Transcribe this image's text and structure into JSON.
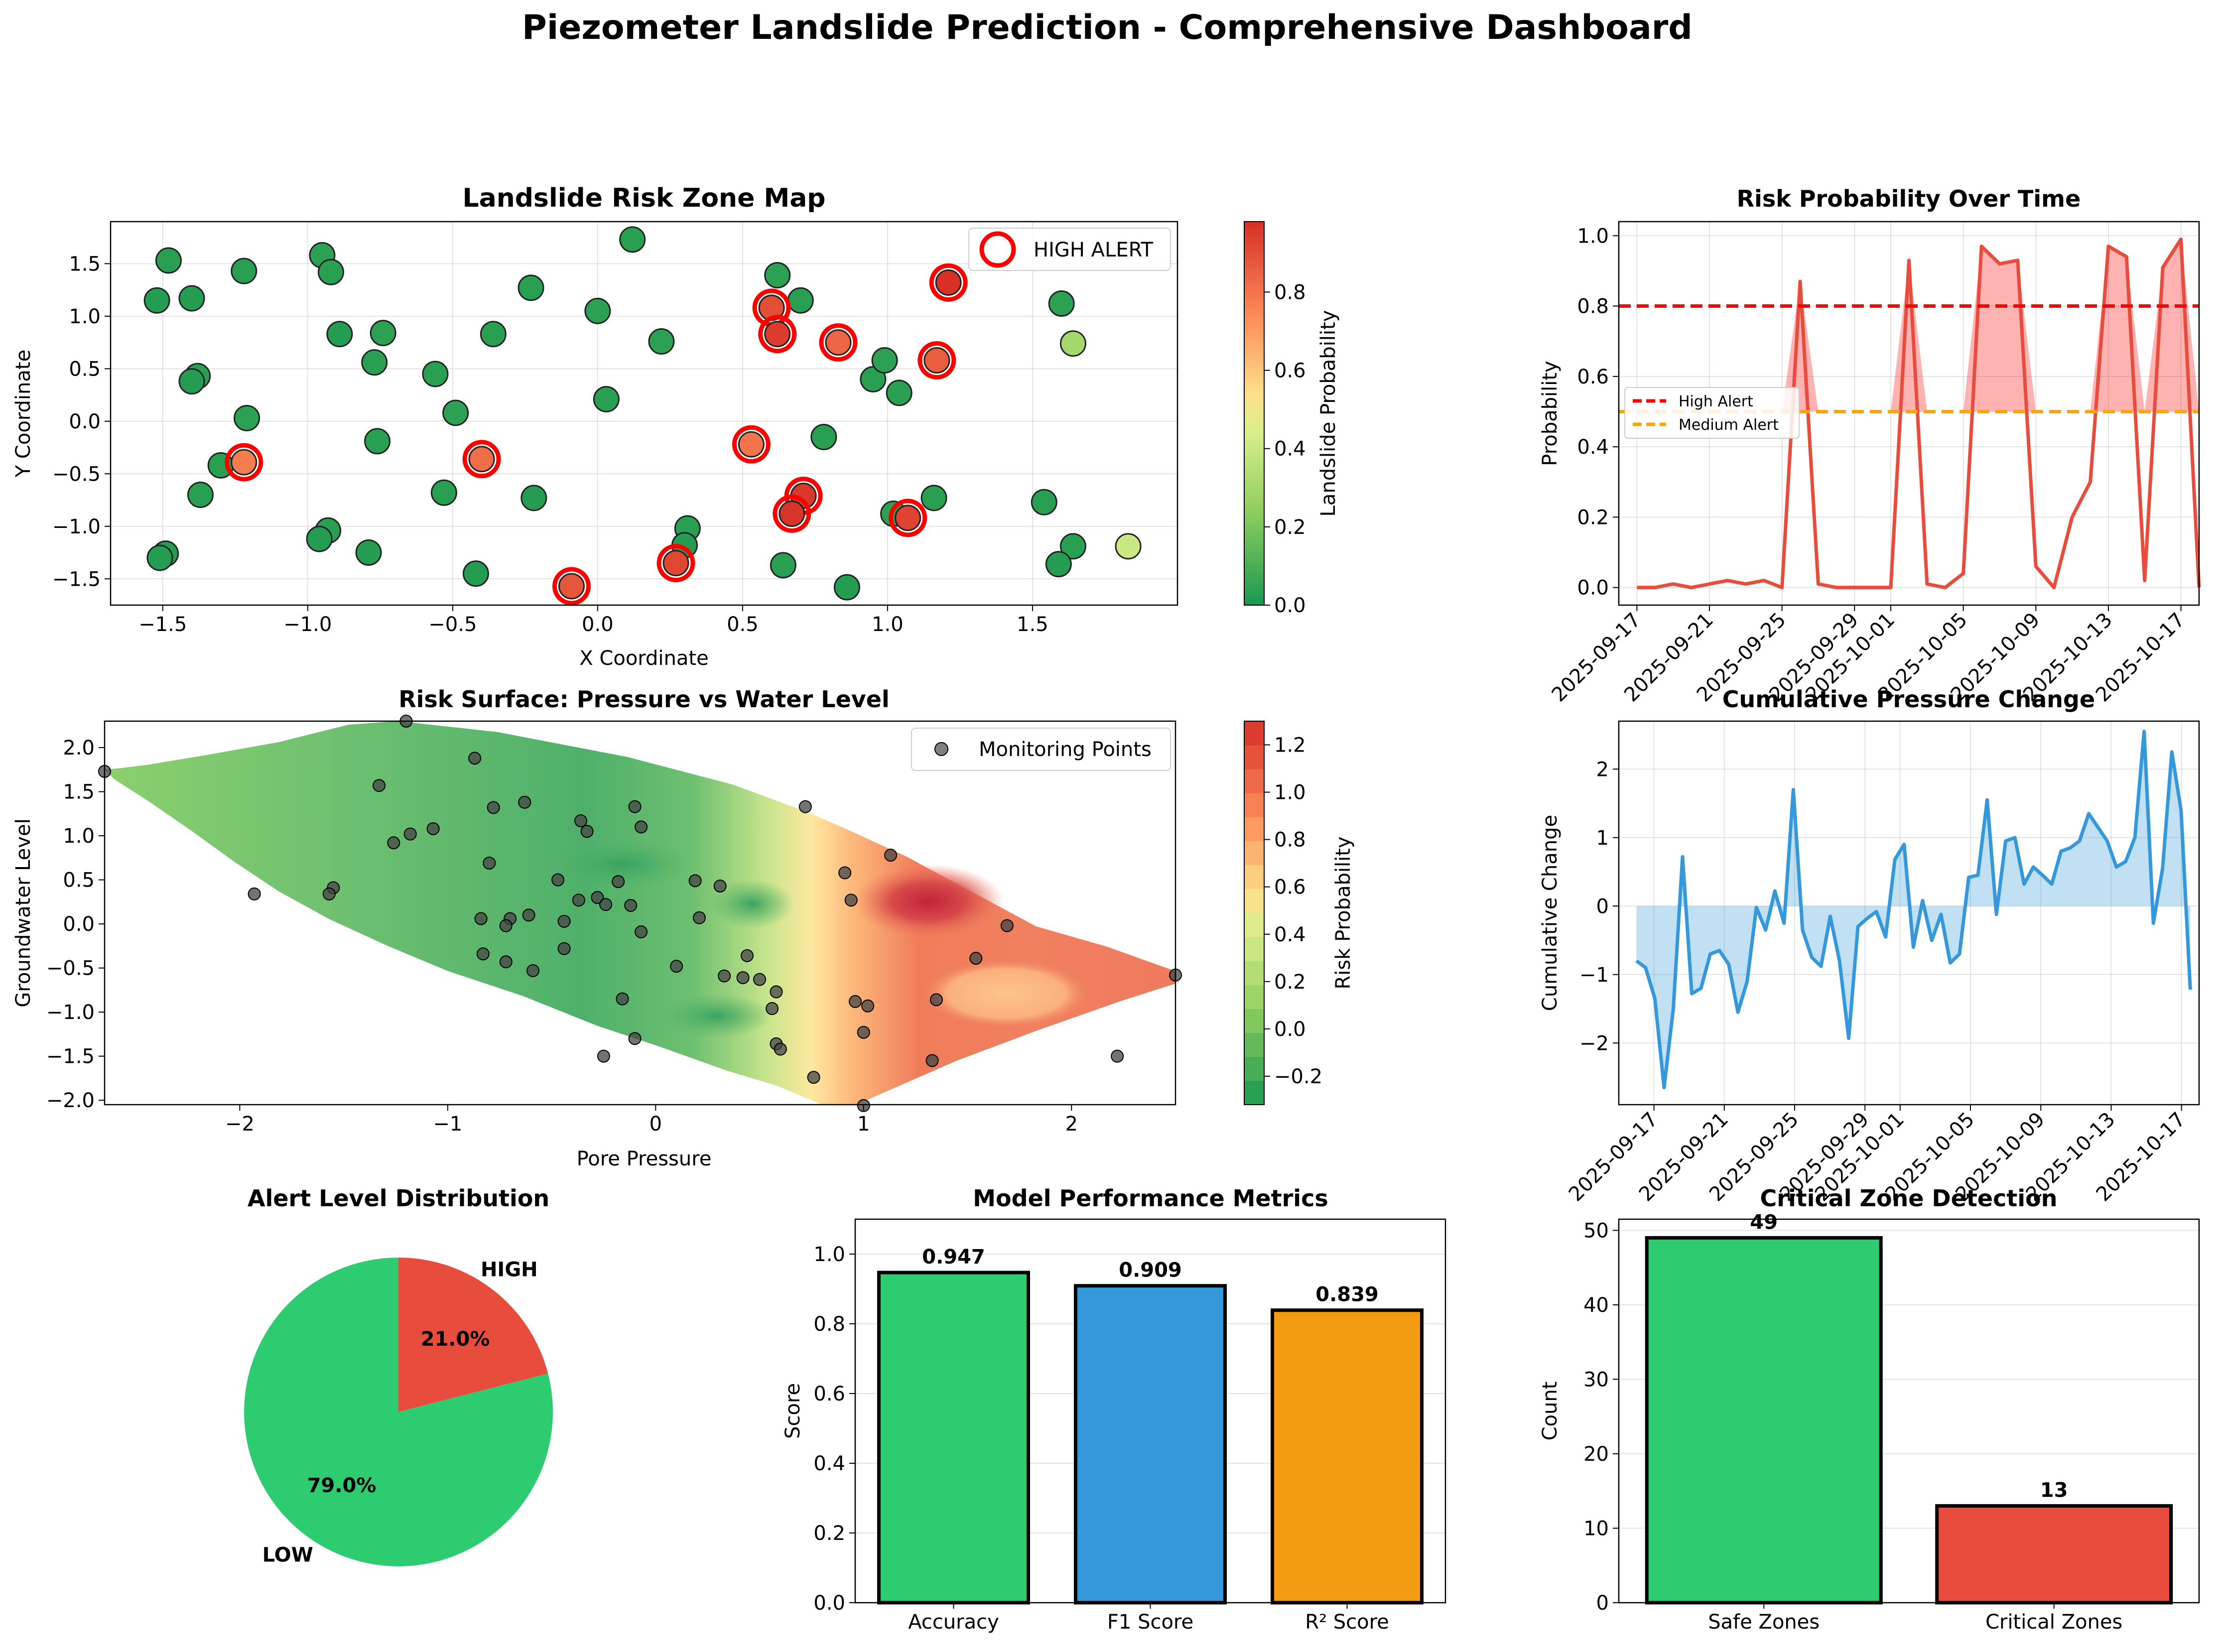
{
  "title": "Piezometer Landslide Prediction - Comprehensive Dashboard",
  "colors": {
    "red": "#e74c3c",
    "green": "#2ecc71",
    "blue": "#3498db",
    "orange": "#f39c12",
    "alert_red": "#ff0000",
    "medium_orange": "#ffa500"
  },
  "chart_data": [
    {
      "id": "risk-zone-map",
      "type": "scatter",
      "title": "Landslide Risk Zone Map",
      "xlabel": "X Coordinate",
      "ylabel": "Y Coordinate",
      "xlim": [
        -1.68,
        2.0
      ],
      "ylim": [
        -1.75,
        1.9
      ],
      "xticks": [
        "−1.5",
        "−1.0",
        "−0.5",
        "0.0",
        "0.5",
        "1.0",
        "1.5"
      ],
      "xtick_values": [
        -1.5,
        -1.0,
        -0.5,
        0.0,
        0.5,
        1.0,
        1.5
      ],
      "yticks": [
        "−1.5",
        "−1.0",
        "−0.5",
        "0.0",
        "0.5",
        "1.0",
        "1.5"
      ],
      "ytick_values": [
        -1.5,
        -1.0,
        -0.5,
        0.0,
        0.5,
        1.0,
        1.5
      ],
      "colorbar_label": "Landslide Probability",
      "colorbar_ticks": [
        "0.0",
        "0.2",
        "0.4",
        "0.6",
        "0.8"
      ],
      "colorbar_tick_values": [
        0.0,
        0.2,
        0.4,
        0.6,
        0.8
      ],
      "colorbar_range": [
        0.0,
        0.98
      ],
      "grid": true,
      "legend": {
        "position": "top-right",
        "entries": [
          "HIGH ALERT"
        ]
      },
      "points": [
        {
          "x": -1.52,
          "y": 1.15,
          "p": 0.02
        },
        {
          "x": -1.48,
          "y": 1.53,
          "p": 0.03
        },
        {
          "x": -1.4,
          "y": 1.17,
          "p": 0.02
        },
        {
          "x": -1.38,
          "y": 0.43,
          "p": 0.03
        },
        {
          "x": -1.4,
          "y": 0.38,
          "p": 0.02
        },
        {
          "x": -1.22,
          "y": 1.43,
          "p": 0.03
        },
        {
          "x": -1.21,
          "y": 0.03,
          "p": 0.04
        },
        {
          "x": -1.3,
          "y": -0.42,
          "p": 0.03
        },
        {
          "x": -1.37,
          "y": -0.7,
          "p": 0.03
        },
        {
          "x": -1.49,
          "y": -1.26,
          "p": 0.02
        },
        {
          "x": -1.51,
          "y": -1.3,
          "p": 0.02
        },
        {
          "x": -0.95,
          "y": 1.58,
          "p": 0.04
        },
        {
          "x": -0.92,
          "y": 1.42,
          "p": 0.03
        },
        {
          "x": -0.89,
          "y": 0.83,
          "p": 0.02
        },
        {
          "x": -0.77,
          "y": 0.56,
          "p": 0.03
        },
        {
          "x": -0.74,
          "y": 0.84,
          "p": 0.04
        },
        {
          "x": -0.76,
          "y": -0.19,
          "p": 0.03
        },
        {
          "x": -0.93,
          "y": -1.04,
          "p": 0.03
        },
        {
          "x": -0.96,
          "y": -1.12,
          "p": 0.02
        },
        {
          "x": -0.79,
          "y": -1.25,
          "p": 0.02
        },
        {
          "x": -0.56,
          "y": 0.45,
          "p": 0.03
        },
        {
          "x": -0.49,
          "y": 0.08,
          "p": 0.04
        },
        {
          "x": -0.53,
          "y": -0.68,
          "p": 0.03
        },
        {
          "x": -0.36,
          "y": 0.83,
          "p": 0.03
        },
        {
          "x": -0.42,
          "y": -1.45,
          "p": 0.02
        },
        {
          "x": -0.23,
          "y": 1.27,
          "p": 0.03
        },
        {
          "x": -0.22,
          "y": -0.73,
          "p": 0.02
        },
        {
          "x": 0.0,
          "y": 1.05,
          "p": 0.04
        },
        {
          "x": 0.03,
          "y": 0.21,
          "p": 0.03
        },
        {
          "x": 0.12,
          "y": 1.73,
          "p": 0.03
        },
        {
          "x": 0.22,
          "y": 0.76,
          "p": 0.04
        },
        {
          "x": 0.31,
          "y": -1.02,
          "p": 0.03
        },
        {
          "x": 0.3,
          "y": -1.18,
          "p": 0.02
        },
        {
          "x": 0.62,
          "y": 1.39,
          "p": 0.04
        },
        {
          "x": 0.7,
          "y": 1.15,
          "p": 0.03
        },
        {
          "x": 0.78,
          "y": -0.15,
          "p": 0.03
        },
        {
          "x": 0.64,
          "y": -1.37,
          "p": 0.03
        },
        {
          "x": 0.86,
          "y": -1.58,
          "p": 0.02
        },
        {
          "x": 0.95,
          "y": 0.4,
          "p": 0.03
        },
        {
          "x": 0.99,
          "y": 0.58,
          "p": 0.04
        },
        {
          "x": 1.04,
          "y": 0.27,
          "p": 0.03
        },
        {
          "x": 1.02,
          "y": -0.88,
          "p": 0.04
        },
        {
          "x": 1.16,
          "y": -0.73,
          "p": 0.03
        },
        {
          "x": 1.54,
          "y": -0.77,
          "p": 0.03
        },
        {
          "x": 1.6,
          "y": 1.12,
          "p": 0.04
        },
        {
          "x": 1.64,
          "y": -1.19,
          "p": 0.03
        },
        {
          "x": 1.59,
          "y": -1.36,
          "p": 0.02
        },
        {
          "x": 1.64,
          "y": 0.74,
          "p": 0.3
        },
        {
          "x": 1.83,
          "y": -1.19,
          "p": 0.4
        },
        {
          "x": -1.22,
          "y": -0.39,
          "p": 0.78,
          "alert": true
        },
        {
          "x": -0.4,
          "y": -0.36,
          "p": 0.82,
          "alert": true
        },
        {
          "x": -0.09,
          "y": -1.57,
          "p": 0.88,
          "alert": true
        },
        {
          "x": 0.27,
          "y": -1.35,
          "p": 0.92,
          "alert": true
        },
        {
          "x": 0.53,
          "y": -0.22,
          "p": 0.8,
          "alert": true
        },
        {
          "x": 0.6,
          "y": 1.08,
          "p": 0.9,
          "alert": true
        },
        {
          "x": 0.62,
          "y": 0.83,
          "p": 0.95,
          "alert": true
        },
        {
          "x": 0.71,
          "y": -0.71,
          "p": 0.96,
          "alert": true
        },
        {
          "x": 0.67,
          "y": -0.88,
          "p": 0.97,
          "alert": true
        },
        {
          "x": 0.83,
          "y": 0.75,
          "p": 0.84,
          "alert": true
        },
        {
          "x": 1.07,
          "y": -0.92,
          "p": 0.93,
          "alert": true
        },
        {
          "x": 1.17,
          "y": 0.58,
          "p": 0.86,
          "alert": true
        },
        {
          "x": 1.21,
          "y": 1.32,
          "p": 0.98,
          "alert": true
        }
      ]
    },
    {
      "id": "risk-over-time",
      "type": "line",
      "title": "Risk Probability Over Time",
      "xlabel": "",
      "ylabel": "Probability",
      "xlim": [
        "2025-09-16",
        "2025-10-18"
      ],
      "xticks": [
        "2025-09-17",
        "2025-09-21",
        "2025-09-25",
        "2025-09-29",
        "2025-10-01",
        "2025-10-05",
        "2025-10-09",
        "2025-10-13",
        "2025-10-17"
      ],
      "ylim": [
        -0.05,
        1.04
      ],
      "yticks": [
        "0.0",
        "0.2",
        "0.4",
        "0.6",
        "0.8",
        "1.0"
      ],
      "ytick_values": [
        0.0,
        0.2,
        0.4,
        0.6,
        0.8,
        1.0
      ],
      "grid": true,
      "legend": {
        "position": "center-left",
        "entries": [
          "High Alert",
          "Medium Alert"
        ]
      },
      "thresholds": [
        {
          "name": "High Alert",
          "value": 0.8,
          "color": "#ff0000"
        },
        {
          "name": "Medium Alert",
          "value": 0.5,
          "color": "#ffa500"
        }
      ],
      "series": [
        {
          "name": "Risk Probability",
          "x": [
            "2025-09-17",
            "2025-09-18",
            "2025-09-19",
            "2025-09-20",
            "2025-09-21",
            "2025-09-22",
            "2025-09-23",
            "2025-09-24",
            "2025-09-25",
            "2025-09-26",
            "2025-09-27",
            "2025-09-28",
            "2025-09-29",
            "2025-09-30",
            "2025-10-01",
            "2025-10-02",
            "2025-10-03",
            "2025-10-04",
            "2025-10-05",
            "2025-10-06",
            "2025-10-07",
            "2025-10-08",
            "2025-10-09",
            "2025-10-10",
            "2025-10-11",
            "2025-10-12",
            "2025-10-13",
            "2025-10-14",
            "2025-10-15",
            "2025-10-16",
            "2025-10-17",
            "2025-10-18"
          ],
          "values": [
            0.0,
            0.0,
            0.01,
            0.0,
            0.01,
            0.02,
            0.01,
            0.02,
            0.0,
            0.87,
            0.01,
            0.0,
            0.0,
            0.0,
            0.0,
            0.93,
            0.01,
            0.0,
            0.04,
            0.97,
            0.92,
            0.93,
            0.06,
            0.0,
            0.2,
            0.3,
            0.97,
            0.94,
            0.02,
            0.91,
            0.99,
            0.0
          ]
        }
      ]
    },
    {
      "id": "risk-surface",
      "type": "heatmap",
      "title": "Risk Surface: Pressure vs Water Level",
      "xlabel": "Pore Pressure",
      "ylabel": "Groundwater Level",
      "xlim": [
        -2.65,
        2.5
      ],
      "ylim": [
        -2.05,
        2.3
      ],
      "xticks": [
        "−2",
        "−1",
        "0",
        "1",
        "2"
      ],
      "xtick_values": [
        -2,
        -1,
        0,
        1,
        2
      ],
      "yticks": [
        "−2.0",
        "−1.5",
        "−1.0",
        "−0.5",
        "0.0",
        "0.5",
        "1.0",
        "1.5",
        "2.0"
      ],
      "ytick_values": [
        -2.0,
        -1.5,
        -1.0,
        -0.5,
        0.0,
        0.5,
        1.0,
        1.5,
        2.0
      ],
      "colorbar_label": "Risk Probability",
      "colorbar_ticks": [
        "−0.2",
        "0.0",
        "0.2",
        "0.4",
        "0.6",
        "0.8",
        "1.0",
        "1.2"
      ],
      "colorbar_tick_values": [
        -0.2,
        0.0,
        0.2,
        0.4,
        0.6,
        0.8,
        1.0,
        1.2
      ],
      "colorbar_range": [
        -0.32,
        1.3
      ],
      "legend": {
        "position": "top-right",
        "entries": [
          "Monitoring Points"
        ]
      },
      "points": [
        {
          "x": -1.2,
          "y": 2.3
        },
        {
          "x": -2.65,
          "y": 1.73
        },
        {
          "x": -1.33,
          "y": 1.57
        },
        {
          "x": -0.87,
          "y": 1.88
        },
        {
          "x": -0.78,
          "y": 1.32
        },
        {
          "x": -0.63,
          "y": 1.38
        },
        {
          "x": -0.36,
          "y": 1.17
        },
        {
          "x": -0.33,
          "y": 1.05
        },
        {
          "x": -0.1,
          "y": 1.33
        },
        {
          "x": -0.07,
          "y": 1.1
        },
        {
          "x": 0.72,
          "y": 1.33
        },
        {
          "x": -1.07,
          "y": 1.08
        },
        {
          "x": -1.18,
          "y": 1.02
        },
        {
          "x": -1.26,
          "y": 0.92
        },
        {
          "x": -0.8,
          "y": 0.69
        },
        {
          "x": -0.47,
          "y": 0.5
        },
        {
          "x": -0.37,
          "y": 0.27
        },
        {
          "x": -0.28,
          "y": 0.3
        },
        {
          "x": -0.24,
          "y": 0.22
        },
        {
          "x": -0.12,
          "y": 0.21
        },
        {
          "x": -0.18,
          "y": 0.48
        },
        {
          "x": -1.55,
          "y": 0.41
        },
        {
          "x": -1.57,
          "y": 0.34
        },
        {
          "x": -1.93,
          "y": 0.34
        },
        {
          "x": 0.19,
          "y": 0.49
        },
        {
          "x": 0.31,
          "y": 0.43
        },
        {
          "x": 0.21,
          "y": 0.07
        },
        {
          "x": -0.84,
          "y": 0.06
        },
        {
          "x": -0.7,
          "y": 0.06
        },
        {
          "x": -0.61,
          "y": 0.1
        },
        {
          "x": -0.72,
          "y": -0.02
        },
        {
          "x": -0.44,
          "y": 0.03
        },
        {
          "x": -0.07,
          "y": -0.09
        },
        {
          "x": -0.83,
          "y": -0.34
        },
        {
          "x": -0.72,
          "y": -0.43
        },
        {
          "x": -0.44,
          "y": -0.28
        },
        {
          "x": -0.59,
          "y": -0.53
        },
        {
          "x": 0.1,
          "y": -0.48
        },
        {
          "x": 0.33,
          "y": -0.59
        },
        {
          "x": 0.42,
          "y": -0.61
        },
        {
          "x": 0.44,
          "y": -0.36
        },
        {
          "x": 0.5,
          "y": -0.63
        },
        {
          "x": 0.58,
          "y": -0.77
        },
        {
          "x": 0.56,
          "y": -0.96
        },
        {
          "x": -0.16,
          "y": -0.85
        },
        {
          "x": -0.1,
          "y": -1.3
        },
        {
          "x": -0.25,
          "y": -1.5
        },
        {
          "x": 0.58,
          "y": -1.36
        },
        {
          "x": 0.6,
          "y": -1.42
        },
        {
          "x": 0.76,
          "y": -1.74
        },
        {
          "x": 0.96,
          "y": -0.88
        },
        {
          "x": 1.02,
          "y": -0.93
        },
        {
          "x": 1.0,
          "y": -1.23
        },
        {
          "x": 1.0,
          "y": -2.06
        },
        {
          "x": 0.91,
          "y": 0.58
        },
        {
          "x": 0.94,
          "y": 0.27
        },
        {
          "x": 1.13,
          "y": 0.78
        },
        {
          "x": 1.35,
          "y": -0.86
        },
        {
          "x": 1.33,
          "y": -1.55
        },
        {
          "x": 1.54,
          "y": -0.39
        },
        {
          "x": 1.69,
          "y": -0.02
        },
        {
          "x": 2.22,
          "y": -1.5
        },
        {
          "x": 2.5,
          "y": -0.58
        }
      ]
    },
    {
      "id": "cumulative-pressure",
      "type": "area",
      "title": "Cumulative Pressure Change",
      "xlabel": "",
      "ylabel": "Cumulative Change",
      "xlim": [
        "2025-09-15",
        "2025-10-18"
      ],
      "xticks": [
        "2025-09-17",
        "2025-09-21",
        "2025-09-25",
        "2025-09-29",
        "2025-10-01",
        "2025-10-05",
        "2025-10-09",
        "2025-10-13",
        "2025-10-17"
      ],
      "ylim": [
        -2.9,
        2.7
      ],
      "yticks": [
        "−2",
        "−1",
        "0",
        "1",
        "2"
      ],
      "ytick_values": [
        -2,
        -1,
        0,
        1,
        2
      ],
      "grid": true,
      "series": [
        {
          "name": "Cumulative Change",
          "values": [
            -0.8,
            -0.9,
            -1.35,
            -2.65,
            -1.5,
            0.72,
            -1.28,
            -1.2,
            -0.7,
            -0.65,
            -0.85,
            -1.55,
            -1.1,
            -0.02,
            -0.35,
            0.22,
            -0.25,
            1.7,
            -0.35,
            -0.75,
            -0.88,
            -0.15,
            -0.8,
            -1.93,
            -0.3,
            -0.18,
            -0.08,
            -0.45,
            0.68,
            0.9,
            -0.6,
            0.08,
            -0.5,
            -0.12,
            -0.83,
            -0.7,
            0.42,
            0.45,
            1.55,
            -0.12,
            0.95,
            1.0,
            0.32,
            0.57,
            0.45,
            0.32,
            0.8,
            0.85,
            0.95,
            1.35,
            1.15,
            0.95,
            0.57,
            0.65,
            1.0,
            2.55,
            -0.25,
            0.55,
            2.25,
            1.4,
            -1.22
          ]
        }
      ]
    },
    {
      "id": "alert-distribution",
      "type": "pie",
      "title": "Alert Level Distribution",
      "slices": [
        {
          "label": "HIGH",
          "value": 21.0,
          "pct_label": "21.0%",
          "color": "#e74c3c"
        },
        {
          "label": "LOW",
          "value": 79.0,
          "pct_label": "79.0%",
          "color": "#2ecc71"
        }
      ]
    },
    {
      "id": "model-performance",
      "type": "bar",
      "title": "Model Performance Metrics",
      "xlabel": "",
      "ylabel": "Score",
      "ylim": [
        0,
        1.1
      ],
      "yticks": [
        "0.0",
        "0.2",
        "0.4",
        "0.6",
        "0.8",
        "1.0"
      ],
      "ytick_values": [
        0.0,
        0.2,
        0.4,
        0.6,
        0.8,
        1.0
      ],
      "grid": true,
      "categories": [
        "Accuracy",
        "F1 Score",
        "R² Score"
      ],
      "values": [
        0.947,
        0.909,
        0.839
      ],
      "value_labels": [
        "0.947",
        "0.909",
        "0.839"
      ],
      "colors": [
        "#2ecc71",
        "#3498db",
        "#f39c12"
      ]
    },
    {
      "id": "critical-zones",
      "type": "bar",
      "title": "Critical Zone Detection",
      "xlabel": "",
      "ylabel": "Count",
      "ylim": [
        0,
        51.5
      ],
      "yticks": [
        "0",
        "10",
        "20",
        "30",
        "40",
        "50"
      ],
      "ytick_values": [
        0,
        10,
        20,
        30,
        40,
        50
      ],
      "grid": true,
      "categories": [
        "Safe Zones",
        "Critical Zones"
      ],
      "values": [
        49,
        13
      ],
      "value_labels": [
        "49",
        "13"
      ],
      "colors": [
        "#2ecc71",
        "#e74c3c"
      ]
    }
  ]
}
